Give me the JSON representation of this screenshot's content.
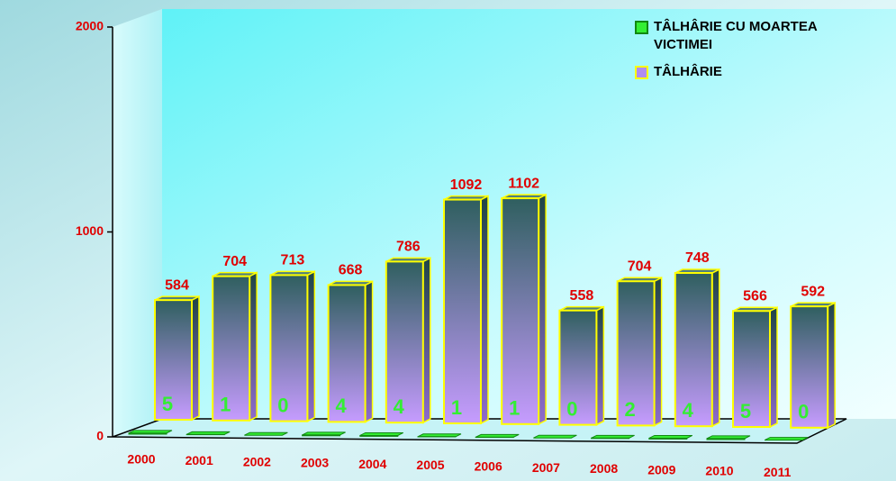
{
  "chart_data": {
    "type": "bar3d",
    "categories": [
      "2000",
      "2001",
      "2002",
      "2003",
      "2004",
      "2005",
      "2006",
      "2007",
      "2008",
      "2009",
      "2010",
      "2011"
    ],
    "series": [
      {
        "name": "TÂLHÂRIE CU MOARTEA VICTIMEI",
        "color": "#33ee33",
        "values": [
          5,
          1,
          0,
          4,
          4,
          1,
          1,
          0,
          2,
          4,
          5,
          0
        ]
      },
      {
        "name": "TÂLHÂRIE",
        "color": "#b08cf0",
        "values": [
          584,
          704,
          713,
          668,
          786,
          1092,
          1102,
          558,
          704,
          748,
          566,
          592
        ]
      }
    ],
    "ylim": [
      0,
      2000
    ],
    "yticks": [
      0,
      1000,
      2000
    ]
  }
}
